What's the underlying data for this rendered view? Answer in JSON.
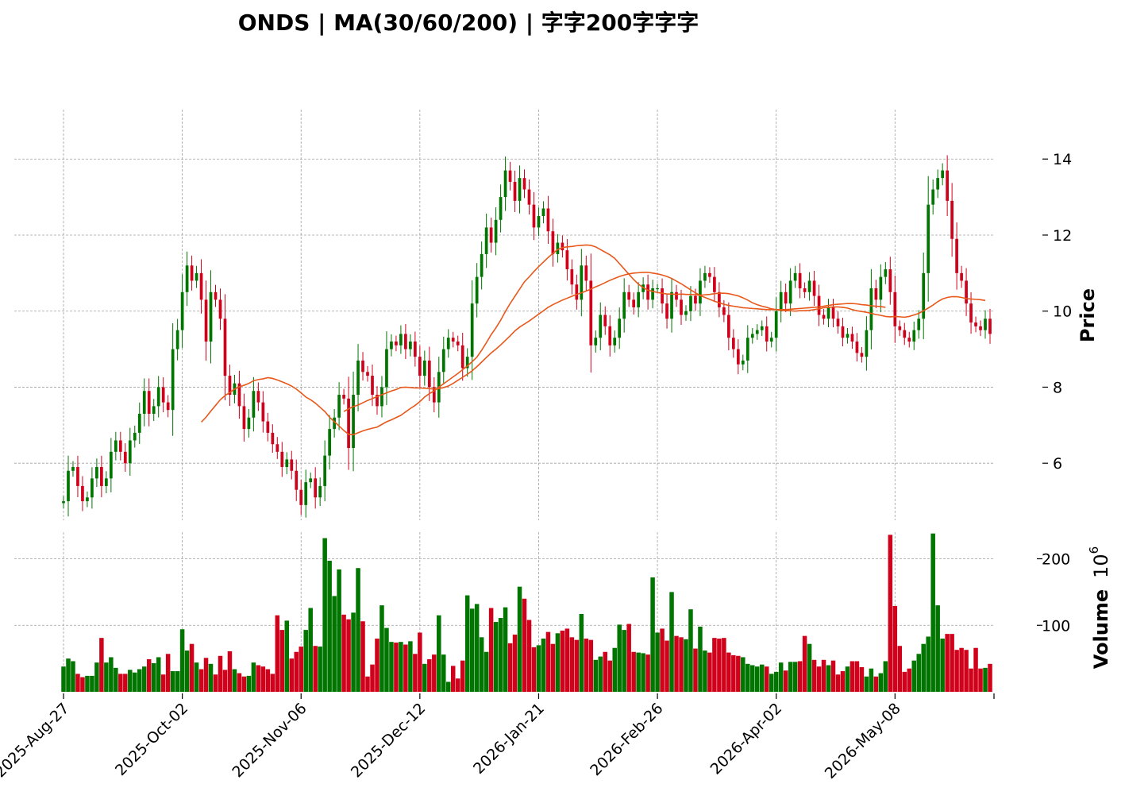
{
  "title": "ONDS  |  MA(30/60/200)  |  字字200字字字",
  "colors": {
    "up": "#007500",
    "down": "#d0021b",
    "ma": "#e8581a",
    "grid": "#a0a0a0"
  },
  "chart_data": {
    "type": "candlestick",
    "title": "ONDS  |  MA(30/60/200)  |  字字200字字字",
    "ylabel": "Price",
    "volume_label": "Volume",
    "volume_exponent_base": "10",
    "volume_exponent": "6",
    "price_ylim": [
      4.5,
      15.3
    ],
    "volume_ylim": [
      0,
      240
    ],
    "price_ticks": [
      "6",
      "8",
      "10",
      "12",
      "14"
    ],
    "volume_ticks": [
      "100",
      "200"
    ],
    "x_tick_labels": [
      "2025-Aug-27",
      "2025-Oct-02",
      "2025-Nov-06",
      "2025-Dec-12",
      "2026-Jan-21",
      "2026-Feb-26",
      "2026-Apr-02",
      "2026-May-08"
    ],
    "x_tick_index": [
      0,
      25,
      50,
      75,
      100,
      125,
      150,
      175
    ],
    "grid": true,
    "close": [
      5.0,
      5.8,
      5.9,
      5.4,
      5.0,
      5.1,
      5.6,
      5.9,
      5.4,
      5.6,
      6.3,
      6.6,
      6.3,
      6.0,
      6.6,
      6.8,
      7.3,
      7.9,
      7.3,
      7.5,
      8.0,
      7.6,
      7.4,
      9.0,
      9.5,
      10.5,
      11.2,
      10.8,
      11.0,
      10.3,
      9.2,
      10.5,
      10.3,
      9.8,
      8.3,
      7.8,
      8.1,
      7.5,
      6.9,
      7.2,
      7.9,
      7.6,
      7.1,
      6.8,
      6.5,
      6.3,
      5.9,
      6.1,
      5.8,
      5.3,
      4.9,
      5.5,
      5.6,
      5.1,
      5.4,
      6.2,
      6.9,
      7.2,
      7.8,
      7.7,
      6.4,
      7.8,
      8.7,
      8.4,
      8.3,
      7.8,
      7.5,
      8.0,
      9.0,
      9.2,
      9.1,
      9.4,
      9.0,
      9.2,
      8.8,
      8.3,
      8.7,
      8.0,
      7.6,
      8.4,
      9.0,
      9.3,
      9.2,
      9.1,
      8.5,
      8.8,
      10.2,
      10.9,
      11.5,
      12.2,
      11.8,
      12.4,
      13.0,
      13.7,
      13.4,
      12.9,
      13.5,
      13.2,
      12.8,
      12.2,
      12.5,
      12.7,
      12.1,
      11.5,
      11.8,
      11.6,
      11.1,
      10.7,
      10.3,
      11.2,
      10.8,
      9.1,
      9.3,
      9.9,
      9.6,
      9.1,
      9.3,
      9.8,
      10.5,
      10.3,
      10.1,
      10.5,
      10.7,
      10.3,
      10.6,
      10.6,
      10.2,
      9.8,
      10.5,
      10.3,
      9.9,
      10.0,
      10.4,
      10.2,
      10.8,
      11.0,
      10.9,
      10.5,
      10.1,
      9.9,
      9.3,
      9.0,
      8.6,
      8.7,
      9.3,
      9.4,
      9.5,
      9.6,
      9.2,
      9.3,
      10.0,
      10.5,
      10.2,
      10.8,
      11.0,
      10.6,
      10.5,
      10.8,
      10.4,
      9.9,
      9.8,
      10.1,
      9.8,
      9.6,
      9.3,
      9.4,
      9.2,
      8.9,
      8.8,
      9.5,
      10.6,
      10.3,
      10.9,
      11.1,
      10.5,
      9.6,
      9.5,
      9.3,
      9.2,
      9.5,
      9.8,
      11.0,
      12.8,
      13.2,
      13.5,
      13.7,
      12.9,
      11.9,
      11.0,
      10.8,
      10.2,
      9.7,
      9.6,
      9.5,
      9.8,
      9.4
    ],
    "volume": [
      38,
      50,
      46,
      27,
      22,
      24,
      24,
      44,
      81,
      44,
      52,
      36,
      27,
      27,
      33,
      29,
      34,
      38,
      49,
      43,
      52,
      26,
      57,
      31,
      31,
      94,
      62,
      72,
      44,
      34,
      51,
      42,
      26,
      54,
      33,
      61,
      34,
      28,
      23,
      24,
      44,
      40,
      38,
      34,
      27,
      115,
      93,
      107,
      50,
      60,
      68,
      93,
      126,
      69,
      68,
      231,
      197,
      144,
      184,
      116,
      109,
      119,
      186,
      106,
      23,
      41,
      80,
      130,
      96,
      75,
      74,
      75,
      71,
      76,
      57,
      89,
      42,
      49,
      56,
      115,
      56,
      15,
      39,
      20,
      47,
      145,
      125,
      132,
      82,
      60,
      126,
      105,
      111,
      127,
      73,
      86,
      158,
      140,
      108,
      67,
      70,
      80,
      90,
      72,
      88,
      92,
      95,
      82,
      78,
      117,
      80,
      78,
      48,
      53,
      60,
      47,
      66,
      101,
      93,
      102,
      60,
      59,
      58,
      56,
      172,
      89,
      95,
      77,
      150,
      84,
      82,
      79,
      124,
      65,
      98,
      62,
      59,
      81,
      80,
      81,
      59,
      55,
      54,
      52,
      42,
      40,
      38,
      41,
      38,
      27,
      30,
      44,
      32,
      45,
      45,
      46,
      84,
      72,
      48,
      38,
      48,
      40,
      47,
      26,
      31,
      38,
      46,
      46,
      37,
      23,
      35,
      23,
      28,
      46,
      236,
      129,
      69,
      30,
      35,
      47,
      57,
      72,
      83,
      238,
      130,
      80,
      87,
      87,
      63,
      66,
      63,
      35,
      66,
      35,
      36,
      42
    ],
    "ma_series": [
      {
        "window": 30,
        "values": [
          null,
          null,
          null,
          null,
          null,
          null,
          null,
          null,
          null,
          null,
          null,
          null,
          null,
          null,
          null,
          null,
          null,
          null,
          null,
          null,
          null,
          null,
          null,
          null,
          null,
          null,
          null,
          null,
          null,
          7.08,
          7.21,
          7.37,
          7.52,
          7.67,
          7.78,
          7.86,
          7.95,
          8.01,
          8.05,
          8.1,
          8.17,
          8.2,
          8.22,
          8.25,
          8.23,
          8.19,
          8.14,
          8.09,
          8.03,
          7.95,
          7.85,
          7.74,
          7.67,
          7.58,
          7.47,
          7.36,
          7.21,
          7.09,
          6.98,
          6.86,
          6.76,
          6.75,
          6.8,
          6.85,
          6.89,
          6.92,
          6.95,
          7.02,
          7.09,
          7.14,
          7.2,
          7.26,
          7.35,
          7.44,
          7.52,
          7.62,
          7.74,
          7.83,
          7.9,
          8.0,
          8.09,
          8.18,
          8.27,
          8.36,
          8.46,
          8.56,
          8.67,
          8.79,
          8.97,
          9.17,
          9.38,
          9.56,
          9.76,
          9.99,
          10.2,
          10.39,
          10.58,
          10.77,
          10.9,
          11.04,
          11.17,
          11.29,
          11.41,
          11.52,
          11.62,
          11.67,
          11.69,
          11.7,
          11.72,
          11.73,
          11.74,
          11.73,
          11.69,
          11.62,
          11.55,
          11.48,
          11.39,
          11.25,
          11.11,
          10.97,
          10.83,
          10.71,
          10.62,
          10.55,
          10.52,
          10.49,
          10.47,
          10.45,
          10.45,
          10.44,
          10.45,
          10.44,
          10.44,
          10.43,
          10.42,
          10.43,
          10.44,
          10.46,
          10.47,
          10.47,
          10.46,
          10.43,
          10.4,
          10.35,
          10.29,
          10.22,
          10.17,
          10.13,
          10.1,
          10.06,
          10.04,
          10.02,
          10.01,
          10.01,
          10.0,
          10.01,
          10.01,
          10.02,
          10.04,
          10.06,
          10.09,
          10.1,
          10.11,
          10.11,
          10.1,
          10.08,
          10.04,
          10.01,
          9.99,
          9.97,
          9.94,
          9.91,
          9.89,
          9.86,
          9.85,
          9.86,
          9.85,
          9.84,
          9.86,
          9.9,
          9.94,
          10.01,
          10.08,
          10.16,
          10.25,
          10.32,
          10.36,
          10.38,
          10.38,
          10.36,
          10.33,
          10.32,
          10.31,
          10.3,
          10.28
        ]
      },
      {
        "window": 60,
        "values": [
          null,
          null,
          null,
          null,
          null,
          null,
          null,
          null,
          null,
          null,
          null,
          null,
          null,
          null,
          null,
          null,
          null,
          null,
          null,
          null,
          null,
          null,
          null,
          null,
          null,
          null,
          null,
          null,
          null,
          null,
          null,
          null,
          null,
          null,
          null,
          null,
          null,
          null,
          null,
          null,
          null,
          null,
          null,
          null,
          null,
          null,
          null,
          null,
          null,
          null,
          null,
          null,
          null,
          null,
          null,
          null,
          null,
          null,
          null,
          7.36,
          7.43,
          7.49,
          7.53,
          7.59,
          7.65,
          7.7,
          7.75,
          7.8,
          7.85,
          7.9,
          7.94,
          7.99,
          8.0,
          7.99,
          7.98,
          7.98,
          7.97,
          7.96,
          7.95,
          7.96,
          7.99,
          8.03,
          8.1,
          8.18,
          8.26,
          8.34,
          8.43,
          8.54,
          8.66,
          8.78,
          8.9,
          9.0,
          9.11,
          9.23,
          9.35,
          9.48,
          9.58,
          9.66,
          9.74,
          9.83,
          9.92,
          10.01,
          10.1,
          10.17,
          10.23,
          10.29,
          10.34,
          10.39,
          10.44,
          10.48,
          10.53,
          10.58,
          10.64,
          10.69,
          10.75,
          10.81,
          10.86,
          10.91,
          10.95,
          10.98,
          11.0,
          11.01,
          11.02,
          11.02,
          11.0,
          10.98,
          10.95,
          10.91,
          10.86,
          10.79,
          10.72,
          10.64,
          10.56,
          10.48,
          10.41,
          10.36,
          10.31,
          10.26,
          10.22,
          10.18,
          10.15,
          10.13,
          10.11,
          10.09,
          10.08,
          10.07,
          10.06,
          10.05,
          10.04,
          10.04,
          10.04,
          10.04,
          10.04,
          10.05,
          10.06,
          10.07,
          10.08,
          10.09,
          10.1,
          10.11,
          10.13,
          10.15,
          10.17,
          10.18,
          10.19,
          10.2,
          10.2,
          10.19,
          10.17,
          10.16,
          10.14,
          10.13,
          10.12,
          10.1
        ]
      }
    ],
    "candles_note": "open = previous close; wick extends beyond body"
  }
}
